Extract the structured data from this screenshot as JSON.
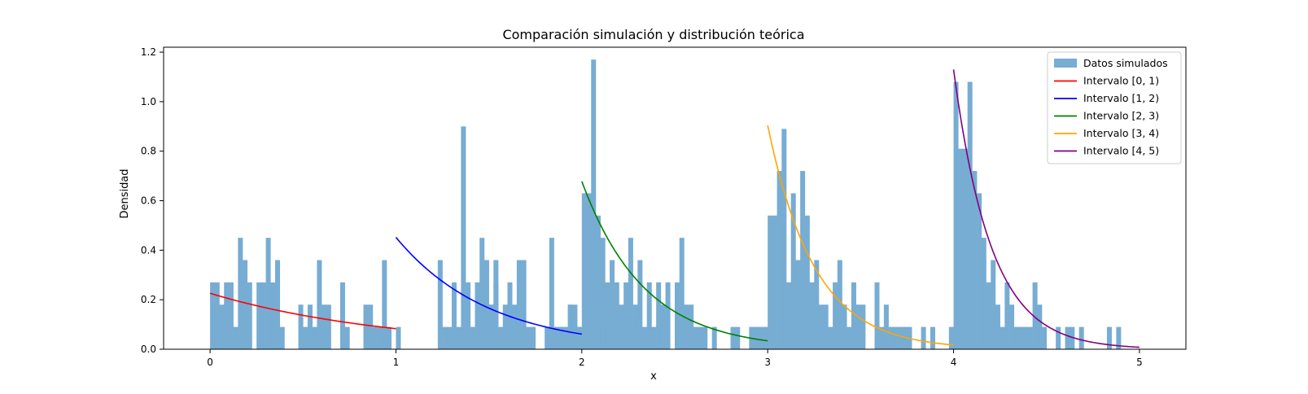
{
  "chart_data": {
    "type": "bar",
    "title": "Comparación simulación y distribución teórica",
    "xlabel": "x",
    "ylabel": "Densidad",
    "xlim": [
      -0.25,
      5.25
    ],
    "ylim": [
      0,
      1.22
    ],
    "xticks": [
      "0",
      "1",
      "2",
      "3",
      "4",
      "5"
    ],
    "yticks": [
      "0.0",
      "0.2",
      "0.4",
      "0.6",
      "0.8",
      "1.0",
      "1.2"
    ],
    "legend_position": "top-right",
    "histogram": {
      "name": "Datos simulados",
      "color": "#77acd3",
      "bin_start": 0.0,
      "bin_width": 0.025,
      "values": [
        0.27,
        0.27,
        0.18,
        0.27,
        0.27,
        0.09,
        0.45,
        0.36,
        0.27,
        0.0,
        0.27,
        0.27,
        0.45,
        0.27,
        0.36,
        0.09,
        0.0,
        0.0,
        0.0,
        0.18,
        0.09,
        0.18,
        0.09,
        0.36,
        0.18,
        0.18,
        0.0,
        0.0,
        0.27,
        0.09,
        0.0,
        0.0,
        0.0,
        0.18,
        0.18,
        0.09,
        0.09,
        0.36,
        0.09,
        0.0,
        0.09,
        0.0,
        0.0,
        0.0,
        0.0,
        0.0,
        0.0,
        0.0,
        0.0,
        0.36,
        0.09,
        0.09,
        0.27,
        0.09,
        0.9,
        0.27,
        0.09,
        0.27,
        0.45,
        0.36,
        0.18,
        0.36,
        0.0,
        0.0,
        0.27,
        0.18,
        0.36,
        0.0,
        0.0,
        0.0,
        0.0,
        0.0,
        0.0,
        0.45,
        0.09,
        0.09,
        0.0,
        0.18,
        0.18,
        0.09,
        0.09,
        0.18,
        0.0,
        0.36,
        0.09,
        0.0,
        0.0,
        0.09,
        0.0,
        0.0,
        0.09,
        0.0,
        0.09,
        0.0,
        0.0,
        0.0,
        0.0,
        0.0,
        0.0,
        0.0,
        0.0,
        0.0,
        0.0,
        0.0,
        0.0,
        0.0,
        0.0,
        0.0,
        0.0,
        0.0,
        0.0,
        0.0,
        0.0,
        0.0,
        0.0,
        0.0,
        0.0,
        0.0,
        0.0,
        0.0,
        0.0,
        0.0,
        0.0,
        0.0,
        0.0,
        0.0,
        0.0,
        0.0,
        0.0,
        0.0,
        0.0,
        0.0,
        0.0,
        0.0,
        0.0,
        0.0,
        0.0,
        0.0,
        0.0,
        0.0,
        0.0,
        0.0,
        0.0,
        0.0,
        0.0,
        0.0,
        0.0,
        0.0,
        0.0,
        0.0,
        0.0,
        0.0,
        0.0,
        0.0,
        0.0,
        0.0,
        0.0,
        0.0,
        0.0,
        0.0,
        0.0,
        0.0,
        0.0,
        0.0,
        0.0,
        0.0,
        0.0,
        0.0,
        0.0,
        0.0,
        0.0,
        0.0,
        0.0,
        0.0,
        0.0,
        0.0,
        0.0,
        0.0,
        0.0,
        0.0,
        0.0,
        0.0,
        0.0,
        0.0,
        0.0,
        0.0,
        0.0,
        0.0,
        0.0,
        0.0,
        0.0,
        0.0,
        0.0,
        0.0,
        0.0,
        0.0,
        0.0,
        0.0,
        0.0,
        0.0
      ],
      "bins": [
        {
          "x": 1.5,
          "v": 0.18
        },
        {
          "x": 1.525,
          "v": 0.27
        },
        {
          "x": 1.55,
          "v": 0.09
        },
        {
          "x": 1.575,
          "v": 0.18
        },
        {
          "x": 1.6,
          "v": 0.09
        },
        {
          "x": 1.625,
          "v": 0.09
        },
        {
          "x": 1.65,
          "v": 0.18
        },
        {
          "x": 1.675,
          "v": 0.36
        },
        {
          "x": 1.7,
          "v": 0.09
        },
        {
          "x": 1.725,
          "v": 0.09
        },
        {
          "x": 1.8,
          "v": 0.09
        },
        {
          "x": 1.85,
          "v": 0.09
        },
        {
          "x": 1.875,
          "v": 0.09
        },
        {
          "x": 1.9,
          "v": 0.09
        },
        {
          "x": 1.925,
          "v": 0.18
        },
        {
          "x": 1.975,
          "v": 0.09
        },
        {
          "x": 2.0,
          "v": 0.63
        },
        {
          "x": 2.025,
          "v": 0.63
        },
        {
          "x": 2.05,
          "v": 1.17
        },
        {
          "x": 2.075,
          "v": 0.54
        },
        {
          "x": 2.1,
          "v": 0.45
        },
        {
          "x": 2.125,
          "v": 0.27
        },
        {
          "x": 2.15,
          "v": 0.36
        },
        {
          "x": 2.175,
          "v": 0.27
        },
        {
          "x": 2.2,
          "v": 0.18
        },
        {
          "x": 2.225,
          "v": 0.27
        },
        {
          "x": 2.25,
          "v": 0.45
        },
        {
          "x": 2.275,
          "v": 0.18
        },
        {
          "x": 2.3,
          "v": 0.36
        },
        {
          "x": 2.325,
          "v": 0.09
        },
        {
          "x": 2.35,
          "v": 0.27
        },
        {
          "x": 2.375,
          "v": 0.09
        },
        {
          "x": 2.4,
          "v": 0.27
        },
        {
          "x": 2.425,
          "v": 0.18
        },
        {
          "x": 2.45,
          "v": 0.27
        },
        {
          "x": 2.475,
          "v": 0.0
        },
        {
          "x": 2.5,
          "v": 0.27
        },
        {
          "x": 2.525,
          "v": 0.45
        },
        {
          "x": 2.55,
          "v": 0.18
        },
        {
          "x": 2.575,
          "v": 0.18
        },
        {
          "x": 2.6,
          "v": 0.09
        },
        {
          "x": 2.625,
          "v": 0.09
        },
        {
          "x": 2.65,
          "v": 0.09
        },
        {
          "x": 2.675,
          "v": 0.0
        },
        {
          "x": 2.7,
          "v": 0.09
        },
        {
          "x": 2.775,
          "v": 0.0
        },
        {
          "x": 2.8,
          "v": 0.09
        },
        {
          "x": 2.825,
          "v": 0.09
        },
        {
          "x": 2.9,
          "v": 0.09
        },
        {
          "x": 2.925,
          "v": 0.09
        },
        {
          "x": 2.95,
          "v": 0.09
        },
        {
          "x": 2.975,
          "v": 0.09
        },
        {
          "x": 3.0,
          "v": 0.54
        },
        {
          "x": 3.025,
          "v": 0.54
        },
        {
          "x": 3.05,
          "v": 0.72
        },
        {
          "x": 3.075,
          "v": 0.89
        },
        {
          "x": 3.1,
          "v": 0.27
        },
        {
          "x": 3.125,
          "v": 0.63
        },
        {
          "x": 3.15,
          "v": 0.36
        },
        {
          "x": 3.175,
          "v": 0.72
        },
        {
          "x": 3.2,
          "v": 0.54
        },
        {
          "x": 3.225,
          "v": 0.27
        },
        {
          "x": 3.25,
          "v": 0.36
        },
        {
          "x": 3.275,
          "v": 0.18
        },
        {
          "x": 3.3,
          "v": 0.18
        },
        {
          "x": 3.325,
          "v": 0.09
        },
        {
          "x": 3.35,
          "v": 0.27
        },
        {
          "x": 3.375,
          "v": 0.36
        },
        {
          "x": 3.4,
          "v": 0.18
        },
        {
          "x": 3.425,
          "v": 0.09
        },
        {
          "x": 3.45,
          "v": 0.27
        },
        {
          "x": 3.475,
          "v": 0.18
        },
        {
          "x": 3.5,
          "v": 0.18
        },
        {
          "x": 3.525,
          "v": 0.0
        },
        {
          "x": 3.575,
          "v": 0.27
        },
        {
          "x": 3.6,
          "v": 0.09
        },
        {
          "x": 3.625,
          "v": 0.18
        },
        {
          "x": 3.65,
          "v": 0.09
        },
        {
          "x": 3.675,
          "v": 0.09
        },
        {
          "x": 3.7,
          "v": 0.09
        },
        {
          "x": 3.725,
          "v": 0.09
        },
        {
          "x": 3.75,
          "v": 0.09
        },
        {
          "x": 3.825,
          "v": 0.09
        },
        {
          "x": 3.875,
          "v": 0.09
        },
        {
          "x": 3.975,
          "v": 0.09
        },
        {
          "x": 4.0,
          "v": 1.08
        },
        {
          "x": 4.025,
          "v": 0.81
        },
        {
          "x": 4.05,
          "v": 0.81
        },
        {
          "x": 4.075,
          "v": 1.08
        },
        {
          "x": 4.1,
          "v": 0.72
        },
        {
          "x": 4.125,
          "v": 0.63
        },
        {
          "x": 4.15,
          "v": 0.45
        },
        {
          "x": 4.175,
          "v": 0.27
        },
        {
          "x": 4.2,
          "v": 0.36
        },
        {
          "x": 4.225,
          "v": 0.18
        },
        {
          "x": 4.25,
          "v": 0.09
        },
        {
          "x": 4.275,
          "v": 0.27
        },
        {
          "x": 4.3,
          "v": 0.18
        },
        {
          "x": 4.325,
          "v": 0.09
        },
        {
          "x": 4.35,
          "v": 0.09
        },
        {
          "x": 4.375,
          "v": 0.09
        },
        {
          "x": 4.4,
          "v": 0.09
        },
        {
          "x": 4.425,
          "v": 0.27
        },
        {
          "x": 4.45,
          "v": 0.18
        },
        {
          "x": 4.475,
          "v": 0.09
        },
        {
          "x": 4.55,
          "v": 0.09
        },
        {
          "x": 4.6,
          "v": 0.09
        },
        {
          "x": 4.625,
          "v": 0.09
        },
        {
          "x": 4.675,
          "v": 0.09
        },
        {
          "x": 4.825,
          "v": 0.09
        },
        {
          "x": 4.875,
          "v": 0.09
        }
      ]
    },
    "series": [
      {
        "name": "Intervalo [0, 1)",
        "color": "#ff0000",
        "x0": 0,
        "x1": 1,
        "y_start": 0.226,
        "y_end": 0.083
      },
      {
        "name": "Intervalo [1, 2)",
        "color": "#0000ff",
        "x0": 1,
        "x1": 2,
        "y_start": 0.452,
        "y_end": 0.061
      },
      {
        "name": "Intervalo [2, 3)",
        "color": "#008000",
        "x0": 2,
        "x1": 3,
        "y_start": 0.678,
        "y_end": 0.034
      },
      {
        "name": "Intervalo [3, 4)",
        "color": "#ffa500",
        "x0": 3,
        "x1": 4,
        "y_start": 0.904,
        "y_end": 0.017
      },
      {
        "name": "Intervalo [4, 5)",
        "color": "#800080",
        "x0": 4,
        "x1": 5,
        "y_start": 1.13,
        "y_end": 0.008
      }
    ]
  }
}
